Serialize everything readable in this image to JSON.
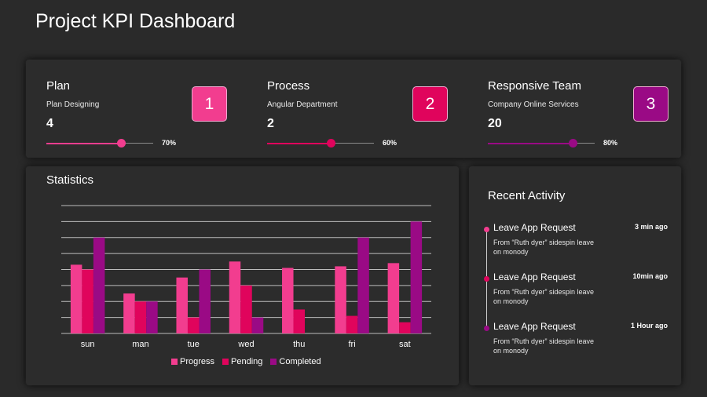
{
  "page": {
    "title": "Project KPI Dashboard"
  },
  "colors": {
    "progress": "#f23d8f",
    "pending": "#e0045c",
    "completed": "#9a0a85",
    "background": "#2a2a2a",
    "card": "#2c2c2c"
  },
  "kpis": [
    {
      "title": "Plan",
      "subtitle": "Plan Designing",
      "value": "4",
      "badge": "1",
      "badge_color": "#f23d8f",
      "percent": 70,
      "percent_label": "70%",
      "slider_color": "#f23d8f"
    },
    {
      "title": "Process",
      "subtitle": "Angular Department",
      "value": "2",
      "badge": "2",
      "badge_color": "#e0045c",
      "percent": 60,
      "percent_label": "60%",
      "slider_color": "#e0045c"
    },
    {
      "title": "Responsive Team",
      "subtitle": "Company Online Services",
      "value": "20",
      "badge": "3",
      "badge_color": "#9a0a85",
      "percent": 80,
      "percent_label": "80%",
      "slider_color": "#9a0a85"
    }
  ],
  "statistics": {
    "title": "Statistics",
    "legend": [
      "Progress",
      "Pending",
      "Completed"
    ]
  },
  "chart_data": {
    "type": "bar",
    "title": "Statistics",
    "xlabel": "",
    "ylabel": "",
    "ylim": [
      0,
      80
    ],
    "grid": true,
    "legend_position": "bottom",
    "categories": [
      "sun",
      "man",
      "tue",
      "wed",
      "thu",
      "fri",
      "sat"
    ],
    "series": [
      {
        "name": "Progress",
        "values": [
          43,
          25,
          35,
          45,
          41,
          42,
          44
        ]
      },
      {
        "name": "Pending",
        "values": [
          40,
          20,
          10,
          30,
          15,
          11,
          7
        ]
      },
      {
        "name": "Completed",
        "values": [
          60,
          20,
          40,
          10,
          0,
          60,
          70
        ]
      }
    ]
  },
  "activity": {
    "title": "Recent Activity",
    "items": [
      {
        "title": "Leave App Request",
        "time": "3 min ago",
        "description": "From “Ruth dyer” sidespin leave on monody",
        "dot_color": "#f23d8f"
      },
      {
        "title": "Leave App Request",
        "time": "10min ago",
        "description": "From “Ruth dyer” sidespin leave on monody",
        "dot_color": "#e0045c"
      },
      {
        "title": "Leave App Request",
        "time": "1 Hour ago",
        "description": "From “Ruth dyer” sidespin leave on monody",
        "dot_color": "#9a0a85"
      }
    ]
  }
}
